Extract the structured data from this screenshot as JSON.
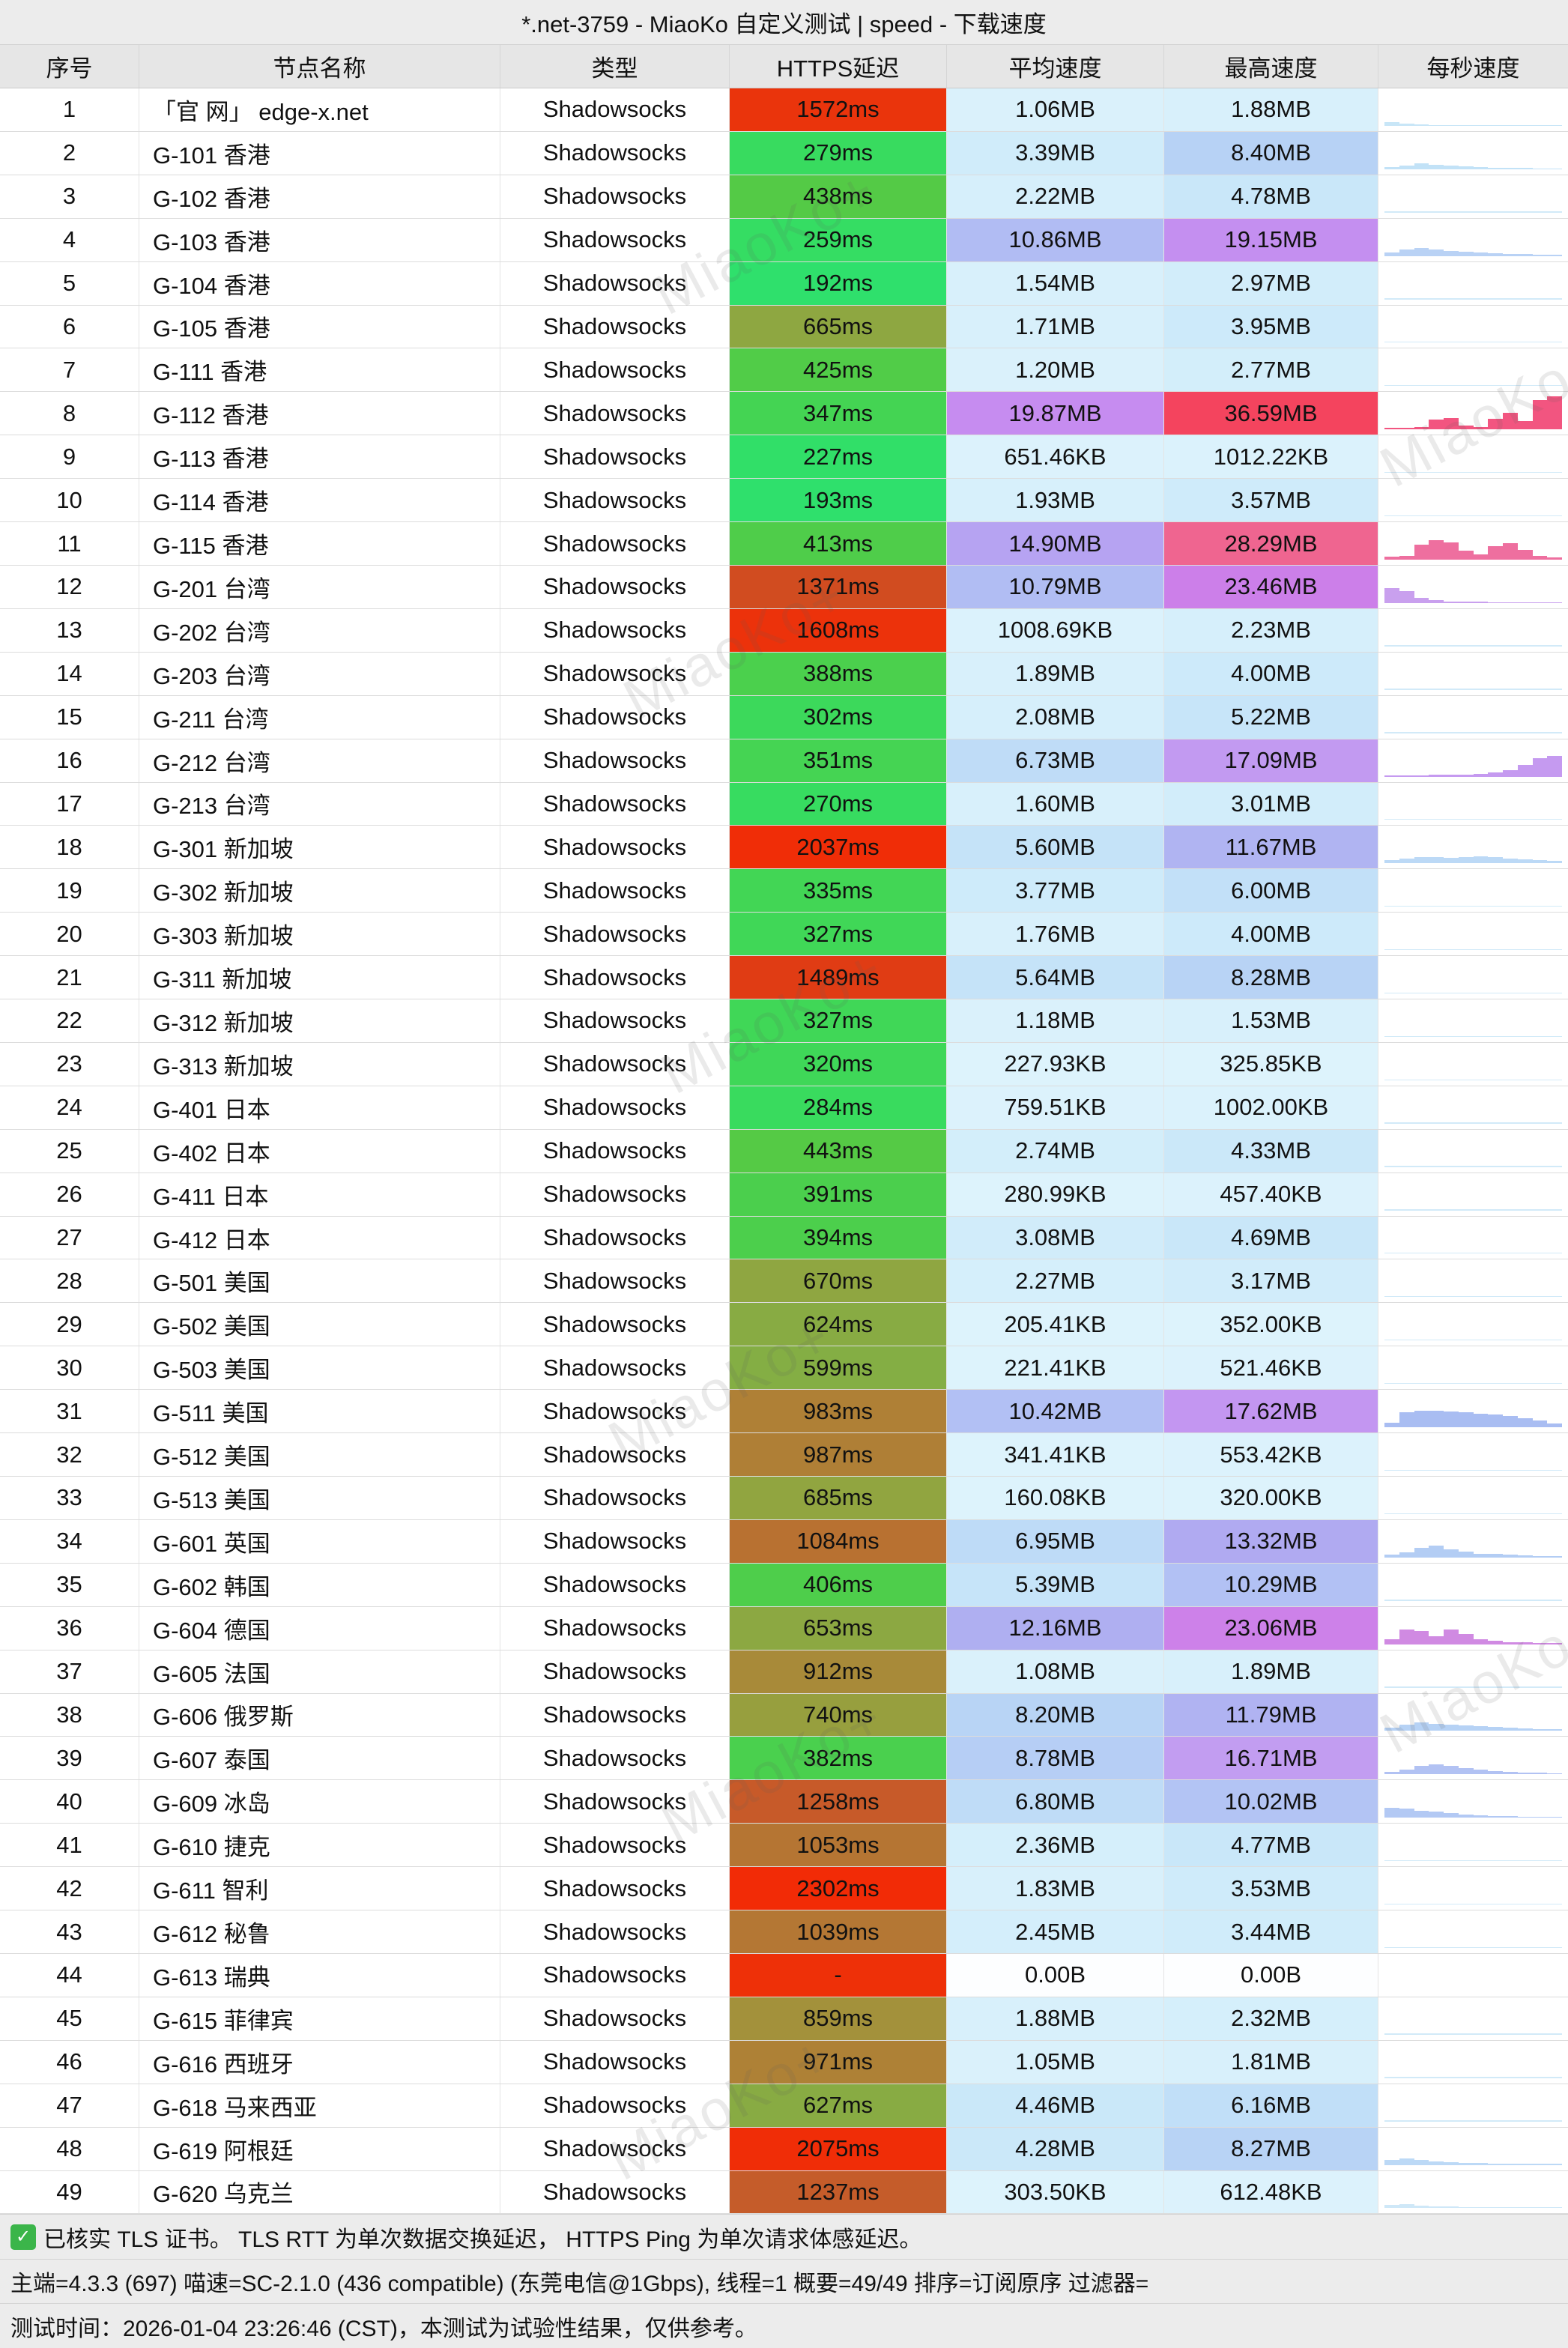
{
  "title": "*.net-3759 - MiaoKo 自定义测试 | speed - 下载速度",
  "watermark": "MiaoKo+",
  "columns": [
    "序号",
    "节点名称",
    "类型",
    "HTTPS延迟",
    "平均速度",
    "最高速度",
    "每秒速度"
  ],
  "spark_default": {
    "c": "#d2eaf8",
    "bars": [
      0.03,
      0.03,
      0.03,
      0.03,
      0.03,
      0.03,
      0.03,
      0.03,
      0.03,
      0.03,
      0.03,
      0.03
    ]
  },
  "rows": [
    {
      "n": "1",
      "name": "「官 网」 edge-x.net",
      "type": "Shadowsocks",
      "lat": "1572ms",
      "latc": "#ea340c",
      "avg": "1.06MB",
      "avgc": "#daf1fb",
      "max": "1.88MB",
      "maxc": "#d8f0fb",
      "spc": "#c8e6f7",
      "sp": [
        0.12,
        0.07,
        0.04,
        0.03,
        0.03,
        0.03,
        0.03,
        0.03,
        0.03,
        0.03,
        0.03,
        0.03
      ]
    },
    {
      "n": "2",
      "name": "G-101 香港",
      "type": "Shadowsocks",
      "lat": "279ms",
      "latc": "#38db5f",
      "avg": "3.39MB",
      "avgc": "#d0ecfa",
      "max": "8.40MB",
      "maxc": "#b7d2f5",
      "spc": "#c2e2f7",
      "sp": [
        0.06,
        0.12,
        0.18,
        0.14,
        0.1,
        0.08,
        0.06,
        0.05,
        0.04,
        0.04,
        0.03,
        0.03
      ]
    },
    {
      "n": "3",
      "name": "G-102 香港",
      "type": "Shadowsocks",
      "lat": "438ms",
      "latc": "#54ca46",
      "avg": "2.22MB",
      "avgc": "#d6effb",
      "max": "4.78MB",
      "maxc": "#c9e7f9"
    },
    {
      "n": "4",
      "name": "G-103 香港",
      "type": "Shadowsocks",
      "lat": "259ms",
      "latc": "#35dd63",
      "avg": "10.86MB",
      "avgc": "#b1bcf3",
      "max": "19.15MB",
      "maxc": "#c48ff0",
      "spc": "#b9d2f5",
      "sp": [
        0.1,
        0.2,
        0.25,
        0.2,
        0.15,
        0.12,
        0.1,
        0.08,
        0.06,
        0.05,
        0.04,
        0.03
      ]
    },
    {
      "n": "5",
      "name": "G-104 香港",
      "type": "Shadowsocks",
      "lat": "192ms",
      "latc": "#2fe06c",
      "avg": "1.54MB",
      "avgc": "#d8f0fb",
      "max": "2.97MB",
      "maxc": "#d2edfa"
    },
    {
      "n": "6",
      "name": "G-105 香港",
      "type": "Shadowsocks",
      "lat": "665ms",
      "latc": "#8ea741",
      "avg": "1.71MB",
      "avgc": "#d8f0fb",
      "max": "3.95MB",
      "maxc": "#cdeafa"
    },
    {
      "n": "7",
      "name": "G-111 香港",
      "type": "Shadowsocks",
      "lat": "425ms",
      "latc": "#51cc48",
      "avg": "1.20MB",
      "avgc": "#daf1fb",
      "max": "2.77MB",
      "maxc": "#d3eefa"
    },
    {
      "n": "8",
      "name": "G-112 香港",
      "type": "Shadowsocks",
      "lat": "347ms",
      "latc": "#44d453",
      "avg": "19.87MB",
      "avgc": "#c68cf0",
      "max": "36.59MB",
      "maxc": "#f4445e",
      "spc": "#f25580",
      "sp": [
        0.05,
        0.05,
        0.08,
        0.3,
        0.35,
        0.12,
        0.08,
        0.32,
        0.5,
        0.25,
        0.9,
        1.0
      ]
    },
    {
      "n": "9",
      "name": "G-113 香港",
      "type": "Shadowsocks",
      "lat": "227ms",
      "latc": "#31df68",
      "avg": "651.46KB",
      "avgc": "#dcf2fc",
      "max": "1012.22KB",
      "maxc": "#dbf2fc"
    },
    {
      "n": "10",
      "name": "G-114 香港",
      "type": "Shadowsocks",
      "lat": "193ms",
      "latc": "#2fe06c",
      "avg": "1.93MB",
      "avgc": "#d7f0fb",
      "max": "3.57MB",
      "maxc": "#cfebfa"
    },
    {
      "n": "11",
      "name": "G-115 香港",
      "type": "Shadowsocks",
      "lat": "413ms",
      "latc": "#4fcd4a",
      "avg": "14.90MB",
      "avgc": "#b6a3f2",
      "max": "28.29MB",
      "maxc": "#ef6590",
      "spc": "#ee6f9f",
      "sp": [
        0.08,
        0.12,
        0.45,
        0.6,
        0.52,
        0.28,
        0.15,
        0.4,
        0.5,
        0.3,
        0.12,
        0.06
      ]
    },
    {
      "n": "12",
      "name": "G-201 台湾",
      "type": "Shadowsocks",
      "lat": "1371ms",
      "latc": "#d14c20",
      "avg": "10.79MB",
      "avgc": "#b1bdf3",
      "max": "23.46MB",
      "maxc": "#cc7fe9",
      "spc": "#c9a0ee",
      "sp": [
        0.45,
        0.35,
        0.15,
        0.08,
        0.05,
        0.04,
        0.04,
        0.03,
        0.03,
        0.03,
        0.03,
        0.03
      ]
    },
    {
      "n": "13",
      "name": "G-202 台湾",
      "type": "Shadowsocks",
      "lat": "1608ms",
      "latc": "#ec320b",
      "avg": "1008.69KB",
      "avgc": "#dbf2fc",
      "max": "2.23MB",
      "maxc": "#d6effb"
    },
    {
      "n": "14",
      "name": "G-203 台湾",
      "type": "Shadowsocks",
      "lat": "388ms",
      "latc": "#4bd04d",
      "avg": "1.89MB",
      "avgc": "#d8f0fb",
      "max": "4.00MB",
      "maxc": "#cdeafa"
    },
    {
      "n": "15",
      "name": "G-211 台湾",
      "type": "Shadowsocks",
      "lat": "302ms",
      "latc": "#3cd95b",
      "avg": "2.08MB",
      "avgc": "#d6effb",
      "max": "5.22MB",
      "maxc": "#c7e5f9"
    },
    {
      "n": "16",
      "name": "G-212 台湾",
      "type": "Shadowsocks",
      "lat": "351ms",
      "latc": "#45d453",
      "avg": "6.73MB",
      "avgc": "#bfdcf7",
      "max": "17.09MB",
      "maxc": "#c29af1",
      "spc": "#c59af0",
      "sp": [
        0.03,
        0.03,
        0.04,
        0.05,
        0.05,
        0.06,
        0.08,
        0.12,
        0.2,
        0.35,
        0.55,
        0.62
      ]
    },
    {
      "n": "17",
      "name": "G-213 台湾",
      "type": "Shadowsocks",
      "lat": "270ms",
      "latc": "#37dc60",
      "avg": "1.60MB",
      "avgc": "#d8f0fb",
      "max": "3.01MB",
      "maxc": "#d2edfa"
    },
    {
      "n": "18",
      "name": "G-301 新加坡",
      "type": "Shadowsocks",
      "lat": "2037ms",
      "latc": "#f02d07",
      "avg": "5.60MB",
      "avgc": "#c5e3f8",
      "max": "11.67MB",
      "maxc": "#b0b4f2",
      "spc": "#bcd9f6",
      "sp": [
        0.1,
        0.15,
        0.2,
        0.18,
        0.16,
        0.2,
        0.22,
        0.18,
        0.15,
        0.12,
        0.1,
        0.07
      ]
    },
    {
      "n": "19",
      "name": "G-302 新加坡",
      "type": "Shadowsocks",
      "lat": "335ms",
      "latc": "#42d655",
      "avg": "3.77MB",
      "avgc": "#ceebfa",
      "max": "6.00MB",
      "maxc": "#c2e0f8"
    },
    {
      "n": "20",
      "name": "G-303 新加坡",
      "type": "Shadowsocks",
      "lat": "327ms",
      "latc": "#40d757",
      "avg": "1.76MB",
      "avgc": "#d8f0fb",
      "max": "4.00MB",
      "maxc": "#cdeafa"
    },
    {
      "n": "21",
      "name": "G-311 新加坡",
      "type": "Shadowsocks",
      "lat": "1489ms",
      "latc": "#e03c14",
      "avg": "5.64MB",
      "avgc": "#c5e3f8",
      "max": "8.28MB",
      "maxc": "#b8d3f5"
    },
    {
      "n": "22",
      "name": "G-312 新加坡",
      "type": "Shadowsocks",
      "lat": "327ms",
      "latc": "#40d757",
      "avg": "1.18MB",
      "avgc": "#daf1fb",
      "max": "1.53MB",
      "maxc": "#d8f0fb"
    },
    {
      "n": "23",
      "name": "G-313 新加坡",
      "type": "Shadowsocks",
      "lat": "320ms",
      "latc": "#3fd758",
      "avg": "227.93KB",
      "avgc": "#ddf3fc",
      "max": "325.85KB",
      "maxc": "#ddf3fc"
    },
    {
      "n": "24",
      "name": "G-401 日本",
      "type": "Shadowsocks",
      "lat": "284ms",
      "latc": "#39db5e",
      "avg": "759.51KB",
      "avgc": "#dcf2fc",
      "max": "1002.00KB",
      "maxc": "#dbf2fc"
    },
    {
      "n": "25",
      "name": "G-402 日本",
      "type": "Shadowsocks",
      "lat": "443ms",
      "latc": "#55ca45",
      "avg": "2.74MB",
      "avgc": "#d3eefa",
      "max": "4.33MB",
      "maxc": "#cbe8f9"
    },
    {
      "n": "26",
      "name": "G-411 日本",
      "type": "Shadowsocks",
      "lat": "391ms",
      "latc": "#4bcf4d",
      "avg": "280.99KB",
      "avgc": "#ddf3fc",
      "max": "457.40KB",
      "maxc": "#dcf2fc"
    },
    {
      "n": "27",
      "name": "G-412 日本",
      "type": "Shadowsocks",
      "lat": "394ms",
      "latc": "#4ccf4c",
      "avg": "3.08MB",
      "avgc": "#d1ecfa",
      "max": "4.69MB",
      "maxc": "#c9e7f9"
    },
    {
      "n": "28",
      "name": "G-501 美国",
      "type": "Shadowsocks",
      "lat": "670ms",
      "latc": "#8fa641",
      "avg": "2.27MB",
      "avgc": "#d5effb",
      "max": "3.17MB",
      "maxc": "#d1ecfa"
    },
    {
      "n": "29",
      "name": "G-502 美国",
      "type": "Shadowsocks",
      "lat": "624ms",
      "latc": "#88ab43",
      "avg": "205.41KB",
      "avgc": "#ddf3fc",
      "max": "352.00KB",
      "maxc": "#ddf3fc"
    },
    {
      "n": "30",
      "name": "G-503 美国",
      "type": "Shadowsocks",
      "lat": "599ms",
      "latc": "#84ae44",
      "avg": "221.41KB",
      "avgc": "#ddf3fc",
      "max": "521.46KB",
      "maxc": "#dcf2fc"
    },
    {
      "n": "31",
      "name": "G-511 美国",
      "type": "Shadowsocks",
      "lat": "983ms",
      "latc": "#af8036",
      "avg": "10.42MB",
      "avgc": "#b2c0f4",
      "max": "17.62MB",
      "maxc": "#c396f1",
      "spc": "#a9bdf2",
      "sp": [
        0.15,
        0.45,
        0.5,
        0.5,
        0.48,
        0.45,
        0.42,
        0.38,
        0.34,
        0.28,
        0.2,
        0.12
      ]
    },
    {
      "n": "32",
      "name": "G-512 美国",
      "type": "Shadowsocks",
      "lat": "987ms",
      "latc": "#af7f36",
      "avg": "341.41KB",
      "avgc": "#ddf3fc",
      "max": "553.42KB",
      "maxc": "#dcf2fc"
    },
    {
      "n": "33",
      "name": "G-513 美国",
      "type": "Shadowsocks",
      "lat": "685ms",
      "latc": "#91a540",
      "avg": "160.08KB",
      "avgc": "#ddf3fc",
      "max": "320.00KB",
      "maxc": "#ddf3fc"
    },
    {
      "n": "34",
      "name": "G-601 英国",
      "type": "Shadowsocks",
      "lat": "1084ms",
      "latc": "#b87131",
      "avg": "6.95MB",
      "avgc": "#bedbf7",
      "max": "13.32MB",
      "maxc": "#b0aaf1",
      "spc": "#b3cdf4",
      "sp": [
        0.08,
        0.15,
        0.3,
        0.35,
        0.25,
        0.18,
        0.12,
        0.1,
        0.08,
        0.06,
        0.05,
        0.04
      ]
    },
    {
      "n": "35",
      "name": "G-602 韩国",
      "type": "Shadowsocks",
      "lat": "406ms",
      "latc": "#4ece4b",
      "avg": "5.39MB",
      "avgc": "#c6e4f9",
      "max": "10.29MB",
      "maxc": "#b2c1f4"
    },
    {
      "n": "36",
      "name": "G-604 德国",
      "type": "Shadowsocks",
      "lat": "653ms",
      "latc": "#8ca842",
      "avg": "12.16MB",
      "avgc": "#afaff1",
      "max": "23.06MB",
      "maxc": "#cd81e9",
      "spc": "#d08ae2",
      "sp": [
        0.15,
        0.45,
        0.4,
        0.25,
        0.45,
        0.3,
        0.15,
        0.1,
        0.06,
        0.05,
        0.04,
        0.03
      ]
    },
    {
      "n": "37",
      "name": "G-605 法国",
      "type": "Shadowsocks",
      "lat": "912ms",
      "latc": "#a88a39",
      "avg": "1.08MB",
      "avgc": "#daf1fb",
      "max": "1.89MB",
      "maxc": "#d8f0fb"
    },
    {
      "n": "38",
      "name": "G-606 俄罗斯",
      "type": "Shadowsocks",
      "lat": "740ms",
      "latc": "#979f3e",
      "avg": "8.20MB",
      "avgc": "#b8d4f5",
      "max": "11.79MB",
      "maxc": "#b0b3f2",
      "spc": "#b6d2f5",
      "sp": [
        0.1,
        0.2,
        0.25,
        0.22,
        0.2,
        0.18,
        0.15,
        0.12,
        0.1,
        0.08,
        0.06,
        0.05
      ]
    },
    {
      "n": "39",
      "name": "G-607 泰国",
      "type": "Shadowsocks",
      "lat": "382ms",
      "latc": "#4ad04e",
      "avg": "8.78MB",
      "avgc": "#b6cef5",
      "max": "16.71MB",
      "maxc": "#c29df1",
      "spc": "#b2c2f3",
      "sp": [
        0.08,
        0.15,
        0.25,
        0.3,
        0.25,
        0.2,
        0.15,
        0.1,
        0.08,
        0.06,
        0.05,
        0.04
      ]
    },
    {
      "n": "40",
      "name": "G-609 冰岛",
      "type": "Shadowsocks",
      "lat": "1258ms",
      "latc": "#c75a29",
      "avg": "6.80MB",
      "avgc": "#bfdcf7",
      "max": "10.02MB",
      "maxc": "#b3c4f4",
      "spc": "#b3c9f4",
      "sp": [
        0.3,
        0.28,
        0.22,
        0.18,
        0.14,
        0.1,
        0.08,
        0.06,
        0.05,
        0.04,
        0.03,
        0.03
      ]
    },
    {
      "n": "41",
      "name": "G-610 捷克",
      "type": "Shadowsocks",
      "lat": "1053ms",
      "latc": "#b57533",
      "avg": "2.36MB",
      "avgc": "#d5effb",
      "max": "4.77MB",
      "maxc": "#c9e7f9"
    },
    {
      "n": "42",
      "name": "G-611 智利",
      "type": "Shadowsocks",
      "lat": "2302ms",
      "latc": "#f22b06",
      "avg": "1.83MB",
      "avgc": "#d8f0fb",
      "max": "3.53MB",
      "maxc": "#cfebfa"
    },
    {
      "n": "43",
      "name": "G-612 秘鲁",
      "type": "Shadowsocks",
      "lat": "1039ms",
      "latc": "#b47734",
      "avg": "2.45MB",
      "avgc": "#d4eefb",
      "max": "3.44MB",
      "maxc": "#d0ecfa"
    },
    {
      "n": "44",
      "name": "G-613 瑞典",
      "type": "Shadowsocks",
      "lat": "-",
      "latc": "#ee3008",
      "avg": "0.00B",
      "avgc": "#fdfeff",
      "max": "0.00B",
      "maxc": "#fdfeff",
      "spc": "#ffffff",
      "sp": []
    },
    {
      "n": "45",
      "name": "G-615 菲律宾",
      "type": "Shadowsocks",
      "lat": "859ms",
      "latc": "#a3913b",
      "avg": "1.88MB",
      "avgc": "#d8f0fb",
      "max": "2.32MB",
      "maxc": "#d5effb"
    },
    {
      "n": "46",
      "name": "G-616 西班牙",
      "type": "Shadowsocks",
      "lat": "971ms",
      "latc": "#ae8136",
      "avg": "1.05MB",
      "avgc": "#daf1fb",
      "max": "1.81MB",
      "maxc": "#d8f0fb"
    },
    {
      "n": "47",
      "name": "G-618 马来西亚",
      "type": "Shadowsocks",
      "lat": "627ms",
      "latc": "#88ab43",
      "avg": "4.46MB",
      "avgc": "#cae8f9",
      "max": "6.16MB",
      "maxc": "#c1dff8"
    },
    {
      "n": "48",
      "name": "G-619 阿根廷",
      "type": "Shadowsocks",
      "lat": "2075ms",
      "latc": "#f02d07",
      "avg": "4.28MB",
      "avgc": "#cbe8f9",
      "max": "8.27MB",
      "maxc": "#b8d3f5",
      "spc": "#bcd9f6",
      "sp": [
        0.15,
        0.2,
        0.15,
        0.1,
        0.08,
        0.06,
        0.05,
        0.04,
        0.03,
        0.03,
        0.03,
        0.03
      ]
    },
    {
      "n": "49",
      "name": "G-620 乌克兰",
      "type": "Shadowsocks",
      "lat": "1237ms",
      "latc": "#c55c2a",
      "avg": "303.50KB",
      "avgc": "#ddf3fc",
      "max": "612.48KB",
      "maxc": "#dcf2fc",
      "spc": "#cfe8f8",
      "sp": [
        0.1,
        0.12,
        0.08,
        0.06,
        0.05,
        0.04,
        0.03,
        0.03,
        0.03,
        0.03,
        0.03,
        0.03
      ]
    }
  ],
  "footer": {
    "check_glyph": "✓",
    "tls_note": "已核实 TLS 证书。 TLS RTT 为单次数据交换延迟， HTTPS Ping 为单次请求体感延迟。",
    "meta": "主端=4.3.3 (697) 喵速=SC-2.1.0 (436 compatible) (东莞电信@1Gbps), 线程=1 概要=49/49 排序=订阅原序 过滤器=",
    "time": "测试时间：2026-01-04 23:26:46 (CST)，本测试为试验性结果，仅供参考。"
  }
}
